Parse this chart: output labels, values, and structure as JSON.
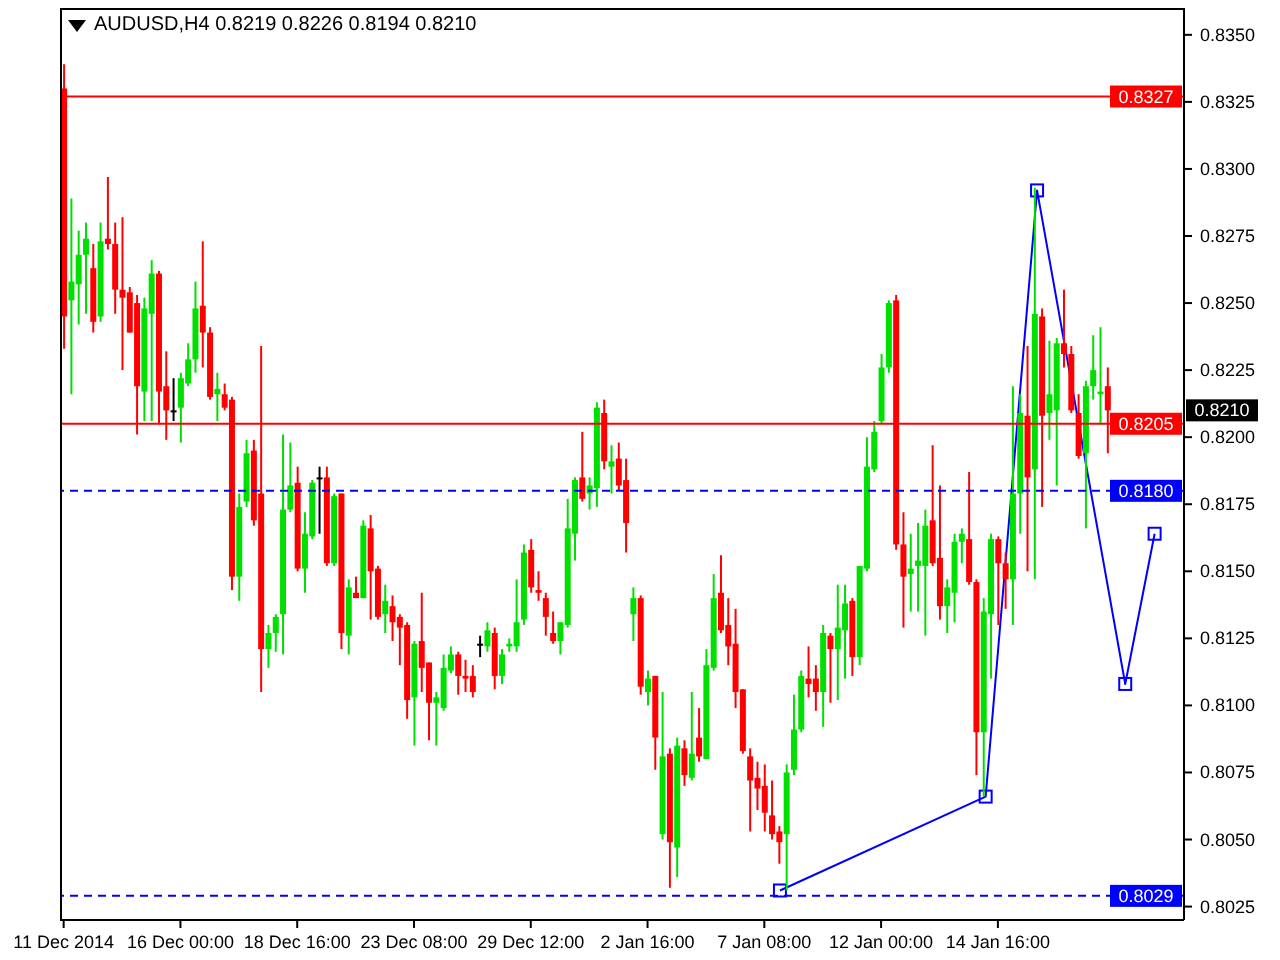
{
  "chart_data": {
    "type": "candlestick",
    "title": "AUDUSD,H4  0.8219 0.8226 0.8194 0.8210",
    "categories": [
      "11 Dec 2014",
      null,
      null,
      null,
      null,
      null,
      null,
      null,
      null,
      null,
      null,
      null,
      null,
      null,
      null,
      null,
      "16 Dec 00:00",
      null,
      null,
      null,
      null,
      null,
      null,
      null,
      null,
      null,
      null,
      null,
      null,
      null,
      null,
      null,
      "18 Dec 16:00",
      null,
      null,
      null,
      null,
      null,
      null,
      null,
      null,
      null,
      null,
      null,
      null,
      null,
      null,
      null,
      "23 Dec 08:00",
      null,
      null,
      null,
      null,
      null,
      null,
      null,
      null,
      null,
      null,
      null,
      null,
      null,
      null,
      null,
      "29 Dec 12:00",
      null,
      null,
      null,
      null,
      null,
      null,
      null,
      null,
      null,
      null,
      null,
      null,
      null,
      null,
      null,
      "2 Jan 16:00",
      null,
      null,
      null,
      null,
      null,
      null,
      null,
      null,
      null,
      null,
      null,
      null,
      null,
      null,
      null,
      "7 Jan 08:00",
      null,
      null,
      null,
      null,
      null,
      null,
      null,
      null,
      null,
      null,
      null,
      null,
      null,
      null,
      null,
      "12 Jan 00:00",
      null,
      null,
      null,
      null,
      null,
      null,
      null,
      null,
      null,
      null,
      null,
      null,
      null,
      null,
      null,
      "14 Jan 16:00",
      null,
      null,
      null,
      null,
      null,
      null,
      null,
      null,
      null,
      null,
      null,
      null,
      null,
      null,
      null,
      null,
      null,
      null,
      null,
      null,
      null,
      null,
      null,
      null,
      null
    ],
    "ohlc": [
      [
        0.833,
        0.8339,
        0.8233,
        0.8245
      ],
      [
        0.8251,
        0.8289,
        0.8216,
        0.8258
      ],
      [
        0.8257,
        0.8277,
        0.8242,
        0.8268
      ],
      [
        0.8268,
        0.828,
        0.8246,
        0.8274
      ],
      [
        0.8263,
        0.8272,
        0.8239,
        0.8243
      ],
      [
        0.8245,
        0.828,
        0.8243,
        0.8273
      ],
      [
        0.8274,
        0.8297,
        0.827,
        0.8272
      ],
      [
        0.8272,
        0.828,
        0.8246,
        0.8255
      ],
      [
        0.8255,
        0.8282,
        0.8225,
        0.8252
      ],
      [
        0.8254,
        0.8256,
        0.8239,
        0.8239
      ],
      [
        0.825,
        0.8253,
        0.8201,
        0.8219
      ],
      [
        0.8217,
        0.8252,
        0.8206,
        0.8248
      ],
      [
        0.8246,
        0.8266,
        0.8206,
        0.8261
      ],
      [
        0.8261,
        0.8262,
        0.8205,
        0.8217
      ],
      [
        0.8219,
        0.8232,
        0.8199,
        0.821
      ],
      [
        0.821,
        0.8222,
        0.8206,
        0.821
      ],
      [
        0.8211,
        0.8224,
        0.8198,
        0.8222
      ],
      [
        0.822,
        0.8235,
        0.8219,
        0.8229
      ],
      [
        0.8229,
        0.8258,
        0.8224,
        0.8248
      ],
      [
        0.8249,
        0.8273,
        0.8226,
        0.8239
      ],
      [
        0.8239,
        0.8241,
        0.8214,
        0.8215
      ],
      [
        0.8216,
        0.8224,
        0.8206,
        0.8218
      ],
      [
        0.8216,
        0.822,
        0.821,
        0.8211
      ],
      [
        0.8214,
        0.8215,
        0.8143,
        0.8148
      ],
      [
        0.8148,
        0.8179,
        0.8139,
        0.8174
      ],
      [
        0.8176,
        0.8199,
        0.8174,
        0.8194
      ],
      [
        0.8195,
        0.8199,
        0.8167,
        0.8169
      ],
      [
        0.8179,
        0.8234,
        0.8105,
        0.8121
      ],
      [
        0.8121,
        0.813,
        0.8114,
        0.8127
      ],
      [
        0.8127,
        0.8134,
        0.812,
        0.8133
      ],
      [
        0.8134,
        0.8201,
        0.8119,
        0.8173
      ],
      [
        0.8173,
        0.8198,
        0.8172,
        0.8182
      ],
      [
        0.8183,
        0.8189,
        0.815,
        0.8151
      ],
      [
        0.8151,
        0.8172,
        0.8142,
        0.8164
      ],
      [
        0.8163,
        0.8184,
        0.8162,
        0.8183
      ],
      [
        0.8185,
        0.8189,
        0.8164,
        0.8185
      ],
      [
        0.8185,
        0.8189,
        0.8152,
        0.8153
      ],
      [
        0.8153,
        0.8179,
        0.8152,
        0.8178
      ],
      [
        0.8179,
        0.8179,
        0.8121,
        0.8127
      ],
      [
        0.8126,
        0.8147,
        0.8119,
        0.8144
      ],
      [
        0.8142,
        0.8148,
        0.814,
        0.814
      ],
      [
        0.814,
        0.8169,
        0.814,
        0.8167
      ],
      [
        0.8166,
        0.8171,
        0.8132,
        0.815
      ],
      [
        0.8151,
        0.8152,
        0.8132,
        0.8133
      ],
      [
        0.8134,
        0.8145,
        0.8127,
        0.8139
      ],
      [
        0.8137,
        0.8141,
        0.8124,
        0.8131
      ],
      [
        0.8133,
        0.8134,
        0.8115,
        0.8129
      ],
      [
        0.813,
        0.8131,
        0.8095,
        0.8102
      ],
      [
        0.8103,
        0.8124,
        0.8085,
        0.8123
      ],
      [
        0.8124,
        0.8142,
        0.8105,
        0.8114
      ],
      [
        0.8116,
        0.8116,
        0.8087,
        0.8101
      ],
      [
        0.8101,
        0.8105,
        0.8085,
        0.8103
      ],
      [
        0.8099,
        0.8119,
        0.8098,
        0.8114
      ],
      [
        0.8113,
        0.8122,
        0.8112,
        0.8119
      ],
      [
        0.8119,
        0.812,
        0.8104,
        0.8111
      ],
      [
        0.8111,
        0.8117,
        0.8105,
        0.811
      ],
      [
        0.8111,
        0.8115,
        0.8103,
        0.8105
      ],
      [
        0.8123,
        0.8126,
        0.8118,
        0.8123
      ],
      [
        0.8122,
        0.8131,
        0.812,
        0.8128
      ],
      [
        0.8127,
        0.8129,
        0.8106,
        0.8111
      ],
      [
        0.8111,
        0.8121,
        0.8108,
        0.8119
      ],
      [
        0.8122,
        0.8125,
        0.812,
        0.8123
      ],
      [
        0.8122,
        0.8147,
        0.812,
        0.8131
      ],
      [
        0.8132,
        0.816,
        0.813,
        0.8157
      ],
      [
        0.8158,
        0.8162,
        0.8142,
        0.8144
      ],
      [
        0.8143,
        0.815,
        0.8139,
        0.8142
      ],
      [
        0.814,
        0.8142,
        0.8126,
        0.8133
      ],
      [
        0.8127,
        0.8135,
        0.8123,
        0.8124
      ],
      [
        0.8124,
        0.8131,
        0.8119,
        0.8131
      ],
      [
        0.813,
        0.8177,
        0.8129,
        0.8166
      ],
      [
        0.8164,
        0.8185,
        0.8154,
        0.8184
      ],
      [
        0.8185,
        0.8202,
        0.8176,
        0.8177
      ],
      [
        0.8179,
        0.8185,
        0.8173,
        0.8182
      ],
      [
        0.8181,
        0.8213,
        0.8174,
        0.8211
      ],
      [
        0.8209,
        0.8214,
        0.8188,
        0.8191
      ],
      [
        0.8189,
        0.8197,
        0.8179,
        0.8191
      ],
      [
        0.8192,
        0.8198,
        0.818,
        0.8182
      ],
      [
        0.8184,
        0.8192,
        0.8157,
        0.8168
      ],
      [
        0.8134,
        0.8144,
        0.8124,
        0.814
      ],
      [
        0.814,
        0.8141,
        0.8104,
        0.8107
      ],
      [
        0.8105,
        0.8113,
        0.81,
        0.811
      ],
      [
        0.8111,
        0.8111,
        0.8076,
        0.8088
      ],
      [
        0.8052,
        0.8105,
        0.805,
        0.8081
      ],
      [
        0.8082,
        0.8084,
        0.8032,
        0.8049
      ],
      [
        0.8047,
        0.8088,
        0.8036,
        0.8085
      ],
      [
        0.8084,
        0.8087,
        0.807,
        0.8074
      ],
      [
        0.8073,
        0.8105,
        0.8072,
        0.8082
      ],
      [
        0.8088,
        0.8099,
        0.8079,
        0.8081
      ],
      [
        0.808,
        0.8121,
        0.808,
        0.8115
      ],
      [
        0.8114,
        0.8149,
        0.8113,
        0.814
      ],
      [
        0.8142,
        0.8156,
        0.8127,
        0.8128
      ],
      [
        0.813,
        0.814,
        0.8115,
        0.8122
      ],
      [
        0.8123,
        0.8136,
        0.8099,
        0.8105
      ],
      [
        0.8106,
        0.8106,
        0.8082,
        0.8083
      ],
      [
        0.8081,
        0.8084,
        0.8053,
        0.8072
      ],
      [
        0.8073,
        0.8079,
        0.8061,
        0.8069
      ],
      [
        0.807,
        0.8078,
        0.8053,
        0.806
      ],
      [
        0.8059,
        0.8072,
        0.805,
        0.8052
      ],
      [
        0.8053,
        0.8055,
        0.8041,
        0.8049
      ],
      [
        0.8052,
        0.8078,
        0.8031,
        0.8075
      ],
      [
        0.8076,
        0.8104,
        0.8074,
        0.8091
      ],
      [
        0.8091,
        0.8113,
        0.809,
        0.8111
      ],
      [
        0.811,
        0.8122,
        0.8103,
        0.8108
      ],
      [
        0.811,
        0.8115,
        0.8098,
        0.8105
      ],
      [
        0.8105,
        0.813,
        0.8092,
        0.8127
      ],
      [
        0.8126,
        0.8127,
        0.8101,
        0.8121
      ],
      [
        0.8121,
        0.8145,
        0.8102,
        0.8129
      ],
      [
        0.8128,
        0.8145,
        0.811,
        0.8138
      ],
      [
        0.8139,
        0.814,
        0.8111,
        0.8118
      ],
      [
        0.8118,
        0.8152,
        0.8115,
        0.8152
      ],
      [
        0.8151,
        0.82,
        0.815,
        0.8189
      ],
      [
        0.8188,
        0.8206,
        0.8187,
        0.8202
      ],
      [
        0.8206,
        0.8231,
        0.8205,
        0.8226
      ],
      [
        0.8226,
        0.8251,
        0.8224,
        0.825
      ],
      [
        0.8251,
        0.8253,
        0.8158,
        0.816
      ],
      [
        0.816,
        0.8172,
        0.8129,
        0.8148
      ],
      [
        0.8149,
        0.8164,
        0.8135,
        0.8151
      ],
      [
        0.8152,
        0.8168,
        0.8135,
        0.8154
      ],
      [
        0.8152,
        0.8173,
        0.8126,
        0.8167
      ],
      [
        0.8169,
        0.8197,
        0.8152,
        0.8153
      ],
      [
        0.8155,
        0.8182,
        0.8132,
        0.8137
      ],
      [
        0.8137,
        0.8147,
        0.8127,
        0.8144
      ],
      [
        0.8142,
        0.8164,
        0.8131,
        0.8161
      ],
      [
        0.8161,
        0.8166,
        0.8153,
        0.8164
      ],
      [
        0.8162,
        0.8187,
        0.8145,
        0.8146
      ],
      [
        0.8146,
        0.8147,
        0.8074,
        0.809
      ],
      [
        0.809,
        0.814,
        0.8066,
        0.8135
      ],
      [
        0.8134,
        0.8164,
        0.811,
        0.8162
      ],
      [
        0.8162,
        0.8163,
        0.813,
        0.8153
      ],
      [
        0.8153,
        0.8157,
        0.8136,
        0.8147
      ],
      [
        0.8147,
        0.8219,
        0.813,
        0.8179
      ],
      [
        0.8179,
        0.8216,
        0.8164,
        0.8209
      ],
      [
        0.8208,
        0.8234,
        0.815,
        0.8185
      ],
      [
        0.8188,
        0.8293,
        0.8147,
        0.8246
      ],
      [
        0.8245,
        0.8248,
        0.8174,
        0.8208
      ],
      [
        0.8209,
        0.8236,
        0.8199,
        0.8216
      ],
      [
        0.821,
        0.8237,
        0.8182,
        0.8235
      ],
      [
        0.8235,
        0.8255,
        0.8226,
        0.8231
      ],
      [
        0.8231,
        0.8234,
        0.8209,
        0.821
      ],
      [
        0.8209,
        0.8216,
        0.8192,
        0.8193
      ],
      [
        0.8194,
        0.8221,
        0.8166,
        0.8219
      ],
      [
        0.8219,
        0.8238,
        0.8214,
        0.8225
      ],
      [
        0.8216,
        0.8241,
        0.8205,
        0.8217
      ],
      [
        0.8219,
        0.8226,
        0.8194,
        0.821
      ],
      null,
      null,
      null,
      null,
      null,
      null,
      null,
      null,
      null,
      null
    ],
    "series": [
      {
        "type": "line",
        "color": "#0000ff",
        "marker": "square",
        "values": [
          null,
          null,
          null,
          null,
          null,
          null,
          null,
          null,
          null,
          null,
          null,
          null,
          null,
          null,
          null,
          null,
          null,
          null,
          null,
          null,
          null,
          null,
          null,
          null,
          null,
          null,
          null,
          null,
          null,
          null,
          null,
          null,
          null,
          null,
          null,
          null,
          null,
          null,
          null,
          null,
          null,
          null,
          null,
          null,
          null,
          null,
          null,
          null,
          null,
          null,
          null,
          null,
          null,
          null,
          null,
          null,
          null,
          null,
          null,
          null,
          null,
          null,
          null,
          null,
          null,
          null,
          null,
          null,
          null,
          null,
          null,
          null,
          null,
          null,
          null,
          null,
          null,
          null,
          null,
          null,
          null,
          null,
          null,
          null,
          null,
          null,
          null,
          null,
          null,
          null,
          null,
          null,
          null,
          null,
          null,
          null,
          null,
          null,
          0.8031,
          null,
          null,
          null,
          null,
          null,
          null,
          null,
          null,
          null,
          null,
          null,
          null,
          null,
          null,
          null,
          null,
          null,
          null,
          null,
          null,
          null,
          null,
          null,
          null,
          null,
          null,
          null,
          0.8066,
          null,
          null,
          null,
          null,
          null,
          null,
          0.8292,
          null,
          null,
          null,
          null,
          null,
          null,
          null,
          null,
          null,
          null,
          null,
          0.8108,
          null,
          null,
          null,
          0.8164,
          null,
          null,
          null,
          null
        ]
      }
    ],
    "ylim": [
      0.802,
      0.836
    ],
    "yticks": [
      {
        "value": 0.8025,
        "label": "0.8025"
      },
      {
        "value": 0.805,
        "label": "0.8050"
      },
      {
        "value": 0.8075,
        "label": "0.8075"
      },
      {
        "value": 0.81,
        "label": "0.8100"
      },
      {
        "value": 0.8125,
        "label": "0.8125"
      },
      {
        "value": 0.815,
        "label": "0.8150"
      },
      {
        "value": 0.8175,
        "label": "0.8175"
      },
      {
        "value": 0.82,
        "label": "0.8200"
      },
      {
        "value": 0.8225,
        "label": "0.8225"
      },
      {
        "value": 0.825,
        "label": "0.8250"
      },
      {
        "value": 0.8275,
        "label": "0.8275"
      },
      {
        "value": 0.83,
        "label": "0.8300"
      },
      {
        "value": 0.8325,
        "label": "0.8325"
      },
      {
        "value": 0.835,
        "label": "0.8350"
      }
    ],
    "ref_lines": [
      {
        "axis": "y",
        "value": 0.8327,
        "label": "0.8327",
        "color": "#ff0000",
        "line_style": "solid"
      },
      {
        "axis": "y",
        "value": 0.8205,
        "label": "0.8205",
        "color": "#ff0000",
        "line_style": "solid"
      },
      {
        "axis": "y",
        "value": 0.818,
        "label": "0.8180",
        "color": "#0000ff",
        "line_style": "dashed"
      },
      {
        "axis": "y",
        "value": 0.8029,
        "label": "0.8029",
        "color": "#0000ff",
        "line_style": "dashed"
      }
    ],
    "annotations": [
      {
        "text": "0.8210",
        "y": 0.821
      }
    ]
  }
}
